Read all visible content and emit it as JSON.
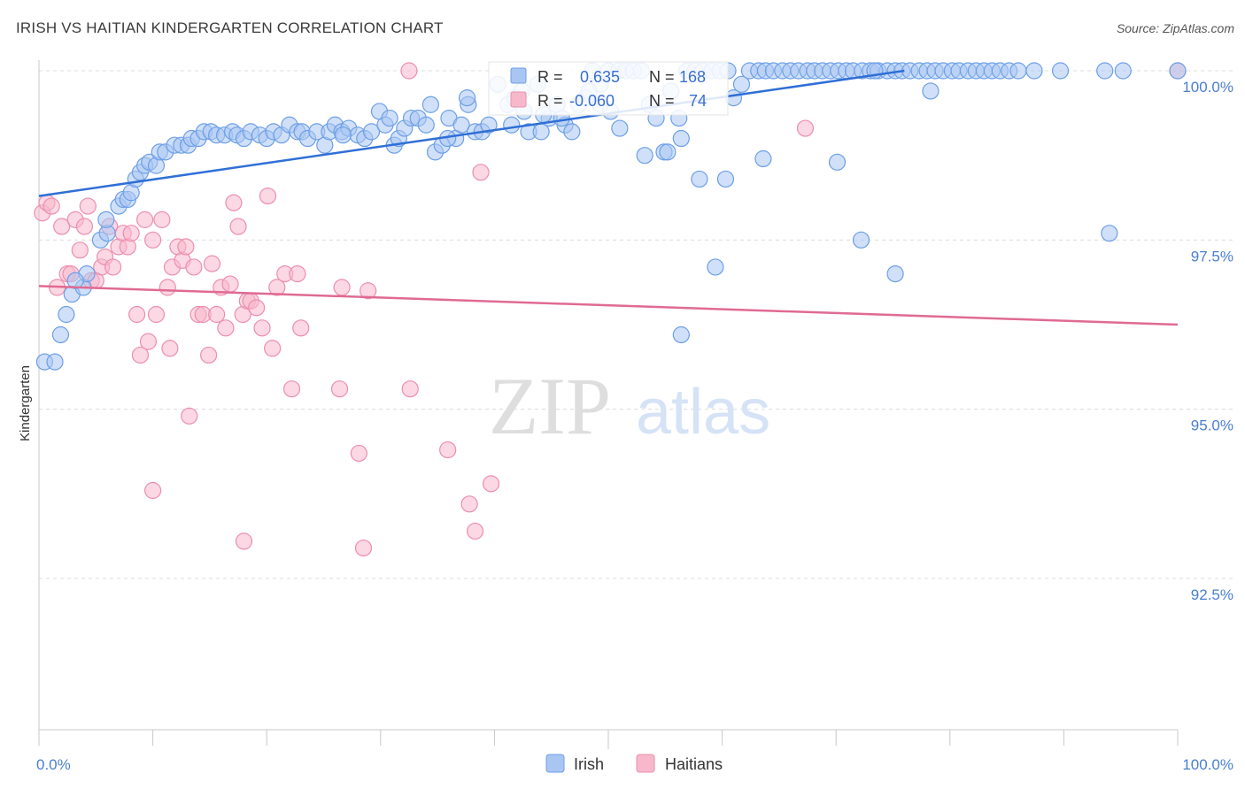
{
  "title": "IRISH VS HAITIAN KINDERGARTEN CORRELATION CHART",
  "source": "Source: ZipAtlas.com",
  "watermark": {
    "zip": "ZIP",
    "atlas": "atlas"
  },
  "colors": {
    "irish_fill": "#a9c6f2",
    "irish_stroke": "#6d9fe6",
    "irish_line": "#2f6fd6",
    "haitian_fill": "#f7b8cc",
    "haitian_stroke": "#ec8fae",
    "haitian_line": "#e06a93",
    "tick_text": "#4a7fd0",
    "grid": "#dcdcdc"
  },
  "stats": [
    {
      "r_label": "R =",
      "r_value": "0.635",
      "n_label": "N =",
      "n_value": "168"
    },
    {
      "r_label": "R =",
      "r_value": "-0.060",
      "n_label": "N =",
      "n_value": "74"
    }
  ],
  "legend": [
    {
      "label": "Irish"
    },
    {
      "label": "Haitians"
    }
  ],
  "chart_data": {
    "type": "scatter",
    "title": "IRISH VS HAITIAN KINDERGARTEN CORRELATION CHART",
    "xlabel": "",
    "ylabel": "Kindergarten",
    "xlim": [
      0,
      100
    ],
    "ylim": [
      90.2,
      100.4
    ],
    "x_tick_labels": [
      {
        "value": 0,
        "label": "0.0%"
      },
      {
        "value": 100,
        "label": "100.0%"
      }
    ],
    "y_tick_labels": [
      {
        "value": 100.0,
        "label": "100.0%"
      },
      {
        "value": 97.5,
        "label": "97.5%"
      },
      {
        "value": 95.0,
        "label": "95.0%"
      },
      {
        "value": 92.5,
        "label": "92.5%"
      }
    ],
    "grid": true,
    "legend_position": "bottom-center",
    "series": [
      {
        "name": "Irish",
        "trend": {
          "x": [
            0,
            76
          ],
          "y": [
            98.15,
            100.0
          ]
        },
        "points": [
          [
            0.5,
            95.7
          ],
          [
            1.4,
            95.7
          ],
          [
            1.9,
            96.1
          ],
          [
            2.4,
            96.4
          ],
          [
            2.9,
            96.7
          ],
          [
            3.9,
            96.8
          ],
          [
            4.2,
            97.0
          ],
          [
            3.2,
            96.9
          ],
          [
            5.4,
            97.5
          ],
          [
            6.0,
            97.6
          ],
          [
            5.9,
            97.8
          ],
          [
            7.0,
            98.0
          ],
          [
            7.4,
            98.1
          ],
          [
            7.8,
            98.1
          ],
          [
            8.1,
            98.2
          ],
          [
            8.5,
            98.4
          ],
          [
            8.9,
            98.5
          ],
          [
            9.3,
            98.6
          ],
          [
            9.7,
            98.65
          ],
          [
            10.3,
            98.6
          ],
          [
            10.6,
            98.8
          ],
          [
            11.1,
            98.8
          ],
          [
            11.9,
            98.9
          ],
          [
            12.5,
            98.9
          ],
          [
            13.1,
            98.9
          ],
          [
            13.4,
            99.0
          ],
          [
            14.0,
            99.0
          ],
          [
            14.5,
            99.1
          ],
          [
            15.1,
            99.1
          ],
          [
            15.6,
            99.05
          ],
          [
            16.3,
            99.05
          ],
          [
            17.0,
            99.1
          ],
          [
            17.4,
            99.05
          ],
          [
            18.0,
            99.0
          ],
          [
            18.6,
            99.1
          ],
          [
            19.4,
            99.05
          ],
          [
            20.0,
            99.0
          ],
          [
            20.6,
            99.1
          ],
          [
            21.3,
            99.05
          ],
          [
            22.0,
            99.2
          ],
          [
            22.7,
            99.1
          ],
          [
            23.1,
            99.1
          ],
          [
            23.6,
            99.0
          ],
          [
            24.4,
            99.1
          ],
          [
            25.1,
            98.9
          ],
          [
            25.5,
            99.1
          ],
          [
            26.0,
            99.2
          ],
          [
            26.6,
            99.1
          ],
          [
            27.2,
            99.15
          ],
          [
            28.0,
            99.05
          ],
          [
            28.6,
            99.0
          ],
          [
            29.2,
            99.1
          ],
          [
            29.9,
            99.4
          ],
          [
            30.4,
            99.2
          ],
          [
            31.2,
            98.9
          ],
          [
            31.6,
            99.0
          ],
          [
            32.1,
            99.15
          ],
          [
            32.7,
            99.3
          ],
          [
            33.3,
            99.3
          ],
          [
            34.0,
            99.2
          ],
          [
            34.4,
            99.5
          ],
          [
            34.8,
            98.8
          ],
          [
            35.4,
            98.9
          ],
          [
            36.0,
            99.3
          ],
          [
            36.6,
            99.0
          ],
          [
            37.1,
            99.2
          ],
          [
            37.7,
            99.5
          ],
          [
            38.3,
            99.1
          ],
          [
            38.9,
            99.1
          ],
          [
            39.5,
            99.2
          ],
          [
            40.3,
            99.8
          ],
          [
            41.2,
            99.5
          ],
          [
            41.8,
            99.6
          ],
          [
            42.4,
            99.7
          ],
          [
            43.0,
            99.1
          ],
          [
            44.1,
            99.1
          ],
          [
            44.8,
            99.3
          ],
          [
            45.5,
            99.5
          ],
          [
            46.2,
            99.2
          ],
          [
            46.8,
            99.1
          ],
          [
            47.4,
            99.5
          ],
          [
            48.0,
            99.6
          ],
          [
            48.6,
            100.0
          ],
          [
            49.3,
            99.8
          ],
          [
            50.0,
            100.0
          ],
          [
            50.9,
            100.0
          ],
          [
            51.5,
            100.0
          ],
          [
            52.2,
            100.0
          ],
          [
            52.9,
            100.0
          ],
          [
            53.6,
            99.5
          ],
          [
            54.2,
            99.3
          ],
          [
            54.9,
            98.8
          ],
          [
            55.5,
            99.7
          ],
          [
            56.2,
            99.3
          ],
          [
            56.9,
            100.0
          ],
          [
            57.6,
            100.0
          ],
          [
            58.3,
            100.0
          ],
          [
            59.1,
            100.0
          ],
          [
            59.8,
            100.0
          ],
          [
            60.5,
            100.0
          ],
          [
            61.0,
            99.6
          ],
          [
            61.7,
            99.8
          ],
          [
            62.4,
            100.0
          ],
          [
            63.2,
            100.0
          ],
          [
            63.8,
            100.0
          ],
          [
            64.5,
            100.0
          ],
          [
            65.3,
            100.0
          ],
          [
            66.0,
            100.0
          ],
          [
            66.7,
            100.0
          ],
          [
            67.5,
            100.0
          ],
          [
            68.1,
            100.0
          ],
          [
            68.8,
            100.0
          ],
          [
            69.5,
            100.0
          ],
          [
            70.2,
            100.0
          ],
          [
            70.9,
            100.0
          ],
          [
            71.5,
            100.0
          ],
          [
            72.3,
            100.0
          ],
          [
            73.0,
            100.0
          ],
          [
            73.7,
            100.0
          ],
          [
            74.5,
            100.0
          ],
          [
            75.2,
            100.0
          ],
          [
            75.8,
            100.0
          ],
          [
            76.5,
            100.0
          ],
          [
            77.3,
            100.0
          ],
          [
            78.0,
            100.0
          ],
          [
            78.7,
            100.0
          ],
          [
            79.4,
            100.0
          ],
          [
            80.2,
            100.0
          ],
          [
            80.8,
            100.0
          ],
          [
            81.6,
            100.0
          ],
          [
            82.3,
            100.0
          ],
          [
            83.0,
            100.0
          ],
          [
            83.7,
            100.0
          ],
          [
            84.4,
            100.0
          ],
          [
            85.2,
            100.0
          ],
          [
            86.0,
            100.0
          ],
          [
            87.4,
            100.0
          ],
          [
            89.7,
            100.0
          ],
          [
            93.6,
            100.0
          ],
          [
            95.2,
            100.0
          ],
          [
            100.0,
            100.0
          ],
          [
            44.3,
            99.35
          ],
          [
            45.9,
            99.3
          ],
          [
            48.3,
            99.7
          ],
          [
            50.2,
            99.4
          ],
          [
            51.0,
            99.15
          ],
          [
            53.2,
            98.75
          ],
          [
            55.2,
            98.8
          ],
          [
            56.4,
            99.0
          ],
          [
            58.0,
            98.4
          ],
          [
            60.3,
            98.4
          ],
          [
            63.6,
            98.7
          ],
          [
            72.2,
            97.5
          ],
          [
            70.1,
            98.65
          ],
          [
            73.4,
            100.0
          ],
          [
            75.2,
            97.0
          ],
          [
            78.3,
            99.7
          ],
          [
            59.4,
            97.1
          ],
          [
            56.4,
            96.1
          ],
          [
            94.0,
            97.6
          ],
          [
            26.7,
            99.05
          ],
          [
            30.8,
            99.3
          ],
          [
            35.9,
            99.0
          ],
          [
            41.5,
            99.2
          ],
          [
            43.8,
            99.8
          ],
          [
            37.6,
            99.6
          ],
          [
            42.6,
            99.4
          ],
          [
            49.3,
            99.5
          ]
        ]
      },
      {
        "name": "Haitians",
        "trend": {
          "x": [
            0,
            100
          ],
          "y": [
            96.82,
            96.25
          ]
        },
        "points": [
          [
            0.3,
            97.9
          ],
          [
            0.7,
            98.05
          ],
          [
            1.1,
            98.0
          ],
          [
            1.6,
            96.8
          ],
          [
            2.0,
            97.7
          ],
          [
            2.5,
            97.0
          ],
          [
            2.8,
            97.0
          ],
          [
            3.2,
            97.8
          ],
          [
            3.6,
            97.35
          ],
          [
            4.0,
            97.7
          ],
          [
            4.3,
            98.0
          ],
          [
            4.6,
            96.9
          ],
          [
            5.0,
            96.9
          ],
          [
            5.5,
            97.1
          ],
          [
            5.8,
            97.25
          ],
          [
            6.2,
            97.7
          ],
          [
            6.5,
            97.1
          ],
          [
            7.0,
            97.4
          ],
          [
            7.4,
            97.6
          ],
          [
            7.8,
            97.4
          ],
          [
            8.1,
            97.6
          ],
          [
            8.6,
            96.4
          ],
          [
            8.9,
            95.8
          ],
          [
            9.3,
            97.8
          ],
          [
            9.6,
            96.0
          ],
          [
            10.0,
            97.5
          ],
          [
            10.3,
            96.4
          ],
          [
            10.8,
            97.8
          ],
          [
            11.3,
            96.8
          ],
          [
            11.5,
            95.9
          ],
          [
            11.7,
            97.1
          ],
          [
            12.2,
            97.4
          ],
          [
            12.6,
            97.2
          ],
          [
            12.9,
            97.4
          ],
          [
            13.2,
            94.9
          ],
          [
            13.6,
            97.1
          ],
          [
            14.0,
            96.4
          ],
          [
            14.4,
            96.4
          ],
          [
            14.9,
            95.8
          ],
          [
            15.2,
            97.15
          ],
          [
            15.6,
            96.4
          ],
          [
            16.0,
            96.8
          ],
          [
            16.4,
            96.2
          ],
          [
            16.8,
            96.85
          ],
          [
            17.1,
            98.05
          ],
          [
            17.5,
            97.7
          ],
          [
            17.9,
            96.4
          ],
          [
            18.3,
            96.6
          ],
          [
            18.6,
            96.6
          ],
          [
            19.1,
            96.5
          ],
          [
            19.6,
            96.2
          ],
          [
            20.1,
            98.15
          ],
          [
            20.5,
            95.9
          ],
          [
            20.9,
            96.8
          ],
          [
            21.6,
            97.0
          ],
          [
            22.2,
            95.3
          ],
          [
            22.7,
            97.0
          ],
          [
            23.0,
            96.2
          ],
          [
            26.4,
            95.3
          ],
          [
            26.6,
            96.8
          ],
          [
            28.1,
            94.35
          ],
          [
            28.5,
            92.95
          ],
          [
            28.9,
            96.75
          ],
          [
            32.5,
            100.0
          ],
          [
            32.6,
            95.3
          ],
          [
            35.9,
            94.4
          ],
          [
            37.8,
            93.6
          ],
          [
            38.3,
            93.2
          ],
          [
            38.8,
            98.5
          ],
          [
            39.7,
            93.9
          ],
          [
            10.0,
            93.8
          ],
          [
            18.0,
            93.05
          ],
          [
            67.3,
            99.15
          ],
          [
            100.0,
            100.0
          ]
        ]
      }
    ]
  }
}
